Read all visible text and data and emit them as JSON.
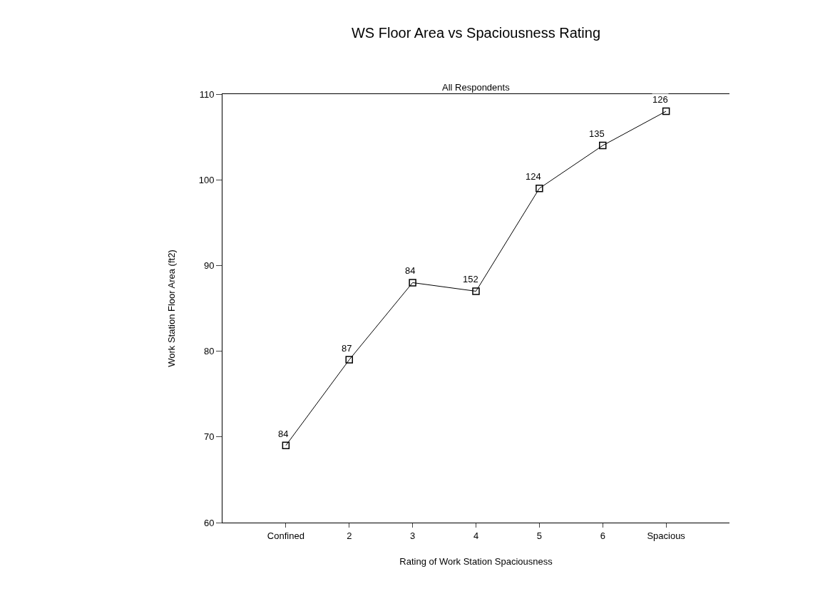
{
  "chart_data": {
    "type": "line",
    "title": "WS Floor Area vs Spaciousness Rating",
    "subtitle": "All Respondents",
    "xlabel": "Rating of Work Station Spaciousness",
    "ylabel": "Work Station Floor Area (ft2)",
    "categories": [
      "Confined",
      "2",
      "3",
      "4",
      "5",
      "6",
      "Spacious"
    ],
    "series": [
      {
        "color": "#000000",
        "values": [
          69,
          79,
          88,
          87,
          99,
          104,
          108
        ]
      }
    ],
    "annotations": [
      {
        "text": "84",
        "x": "Confined",
        "y": 69
      },
      {
        "text": "87",
        "x": "2",
        "y": 79
      },
      {
        "text": "84",
        "x": "3",
        "y": 88
      },
      {
        "text": "152",
        "x": "4",
        "y": 87
      },
      {
        "text": "124",
        "x": "5",
        "y": 99
      },
      {
        "text": "135",
        "x": "6",
        "y": 104
      },
      {
        "text": "126",
        "x": "Spacious",
        "y": 108
      }
    ],
    "ylim": [
      60,
      110
    ],
    "yticks": [
      60,
      70,
      80,
      90,
      100,
      110
    ],
    "grid": false,
    "marker": "square",
    "line_style": "solid"
  }
}
